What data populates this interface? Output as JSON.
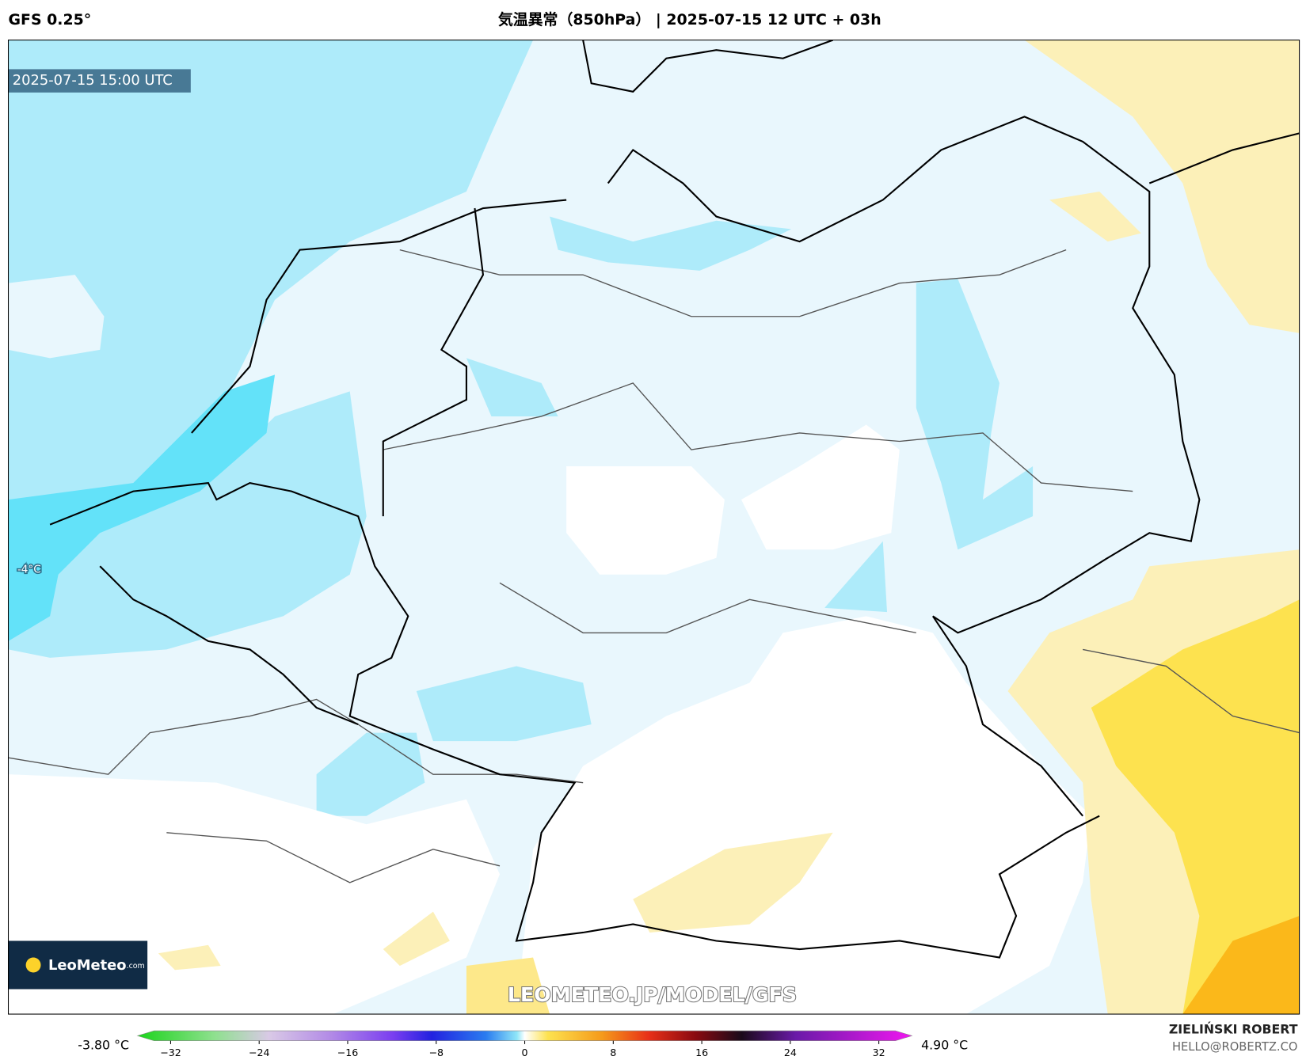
{
  "header": {
    "model": "GFS 0.25°",
    "title": "気温異常（850hPa） | 2025-07-15 12 UTC + 03h"
  },
  "map": {
    "valid_time": "2025-07-15 15:00 UTC",
    "contour_label": "-4°C",
    "watermark": "LEOMETEO.JP/MODEL/GFS",
    "logo": "LeoMeteo",
    "logo_suffix": ".com"
  },
  "colorbar": {
    "min_label": "-3.80 °C",
    "max_label": "4.90 °C",
    "lim": [
      -35,
      35
    ],
    "ticks": [
      {
        "value": -32,
        "label": "−32"
      },
      {
        "value": -24,
        "label": "−24"
      },
      {
        "value": -16,
        "label": "−16"
      },
      {
        "value": -8,
        "label": "−8"
      },
      0,
      8,
      16,
      24,
      32
    ]
  },
  "footer": {
    "author": "ZIELIŃSKI ROBERT",
    "email": "HELLO@ROBERTZ.CO"
  }
}
